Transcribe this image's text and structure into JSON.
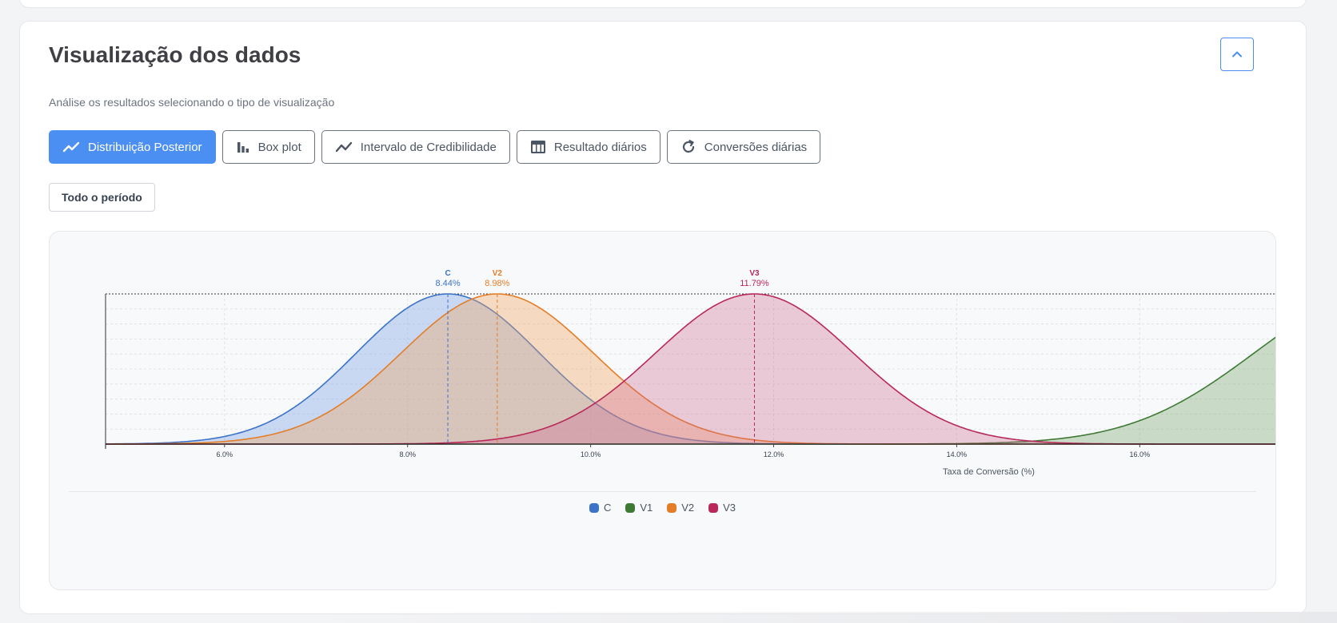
{
  "section": {
    "title": "Visualização dos dados",
    "subtitle": "Análise os resultados selecionando o tipo de visualização"
  },
  "tabs": [
    {
      "label": "Distribuição Posterior",
      "icon": "trending-line-icon",
      "active": true
    },
    {
      "label": "Box plot",
      "icon": "bar-chart-icon",
      "active": false
    },
    {
      "label": "Intervalo de Credibilidade",
      "icon": "line-chart-icon",
      "active": false
    },
    {
      "label": "Resultado diários",
      "icon": "table-icon",
      "active": false
    },
    {
      "label": "Conversões diárias",
      "icon": "refresh-icon",
      "active": false
    }
  ],
  "period": {
    "label": "Todo o período"
  },
  "colors": {
    "accent": "#4b8ff2",
    "C": "#3b73c8",
    "V1": "#3f7a35",
    "V2": "#e47d27",
    "V3": "#b8285a"
  },
  "chart_data": {
    "type": "area",
    "title": "",
    "xlabel": "Taxa de Conversão (%)",
    "ylabel": "",
    "xlim": [
      4.7,
      17.5
    ],
    "x_ticks": [
      "6.0%",
      "8.0%",
      "10.0%",
      "12.0%",
      "14.0%",
      "16.0%"
    ],
    "x_tick_values": [
      6,
      8,
      10,
      12,
      14,
      16
    ],
    "grid": true,
    "legend_position": "bottom",
    "series": [
      {
        "name": "C",
        "mean": 8.44,
        "mean_label": "8.44%",
        "sd": 1.0,
        "color": "#3b73c8",
        "fill": "rgba(120,164,228,0.38)",
        "annotated": true
      },
      {
        "name": "V1",
        "mean": 18.6,
        "sd": 1.35,
        "color": "#3f7a35",
        "fill": "rgba(111,160,101,0.34)",
        "annotated": false
      },
      {
        "name": "V2",
        "mean": 8.98,
        "mean_label": "8.98%",
        "sd": 1.05,
        "color": "#e47d27",
        "fill": "rgba(240,166,100,0.38)",
        "annotated": true
      },
      {
        "name": "V3",
        "mean": 11.79,
        "mean_label": "11.79%",
        "sd": 1.08,
        "color": "#b8285a",
        "fill": "rgba(204,100,140,0.32)",
        "annotated": true
      }
    ]
  }
}
